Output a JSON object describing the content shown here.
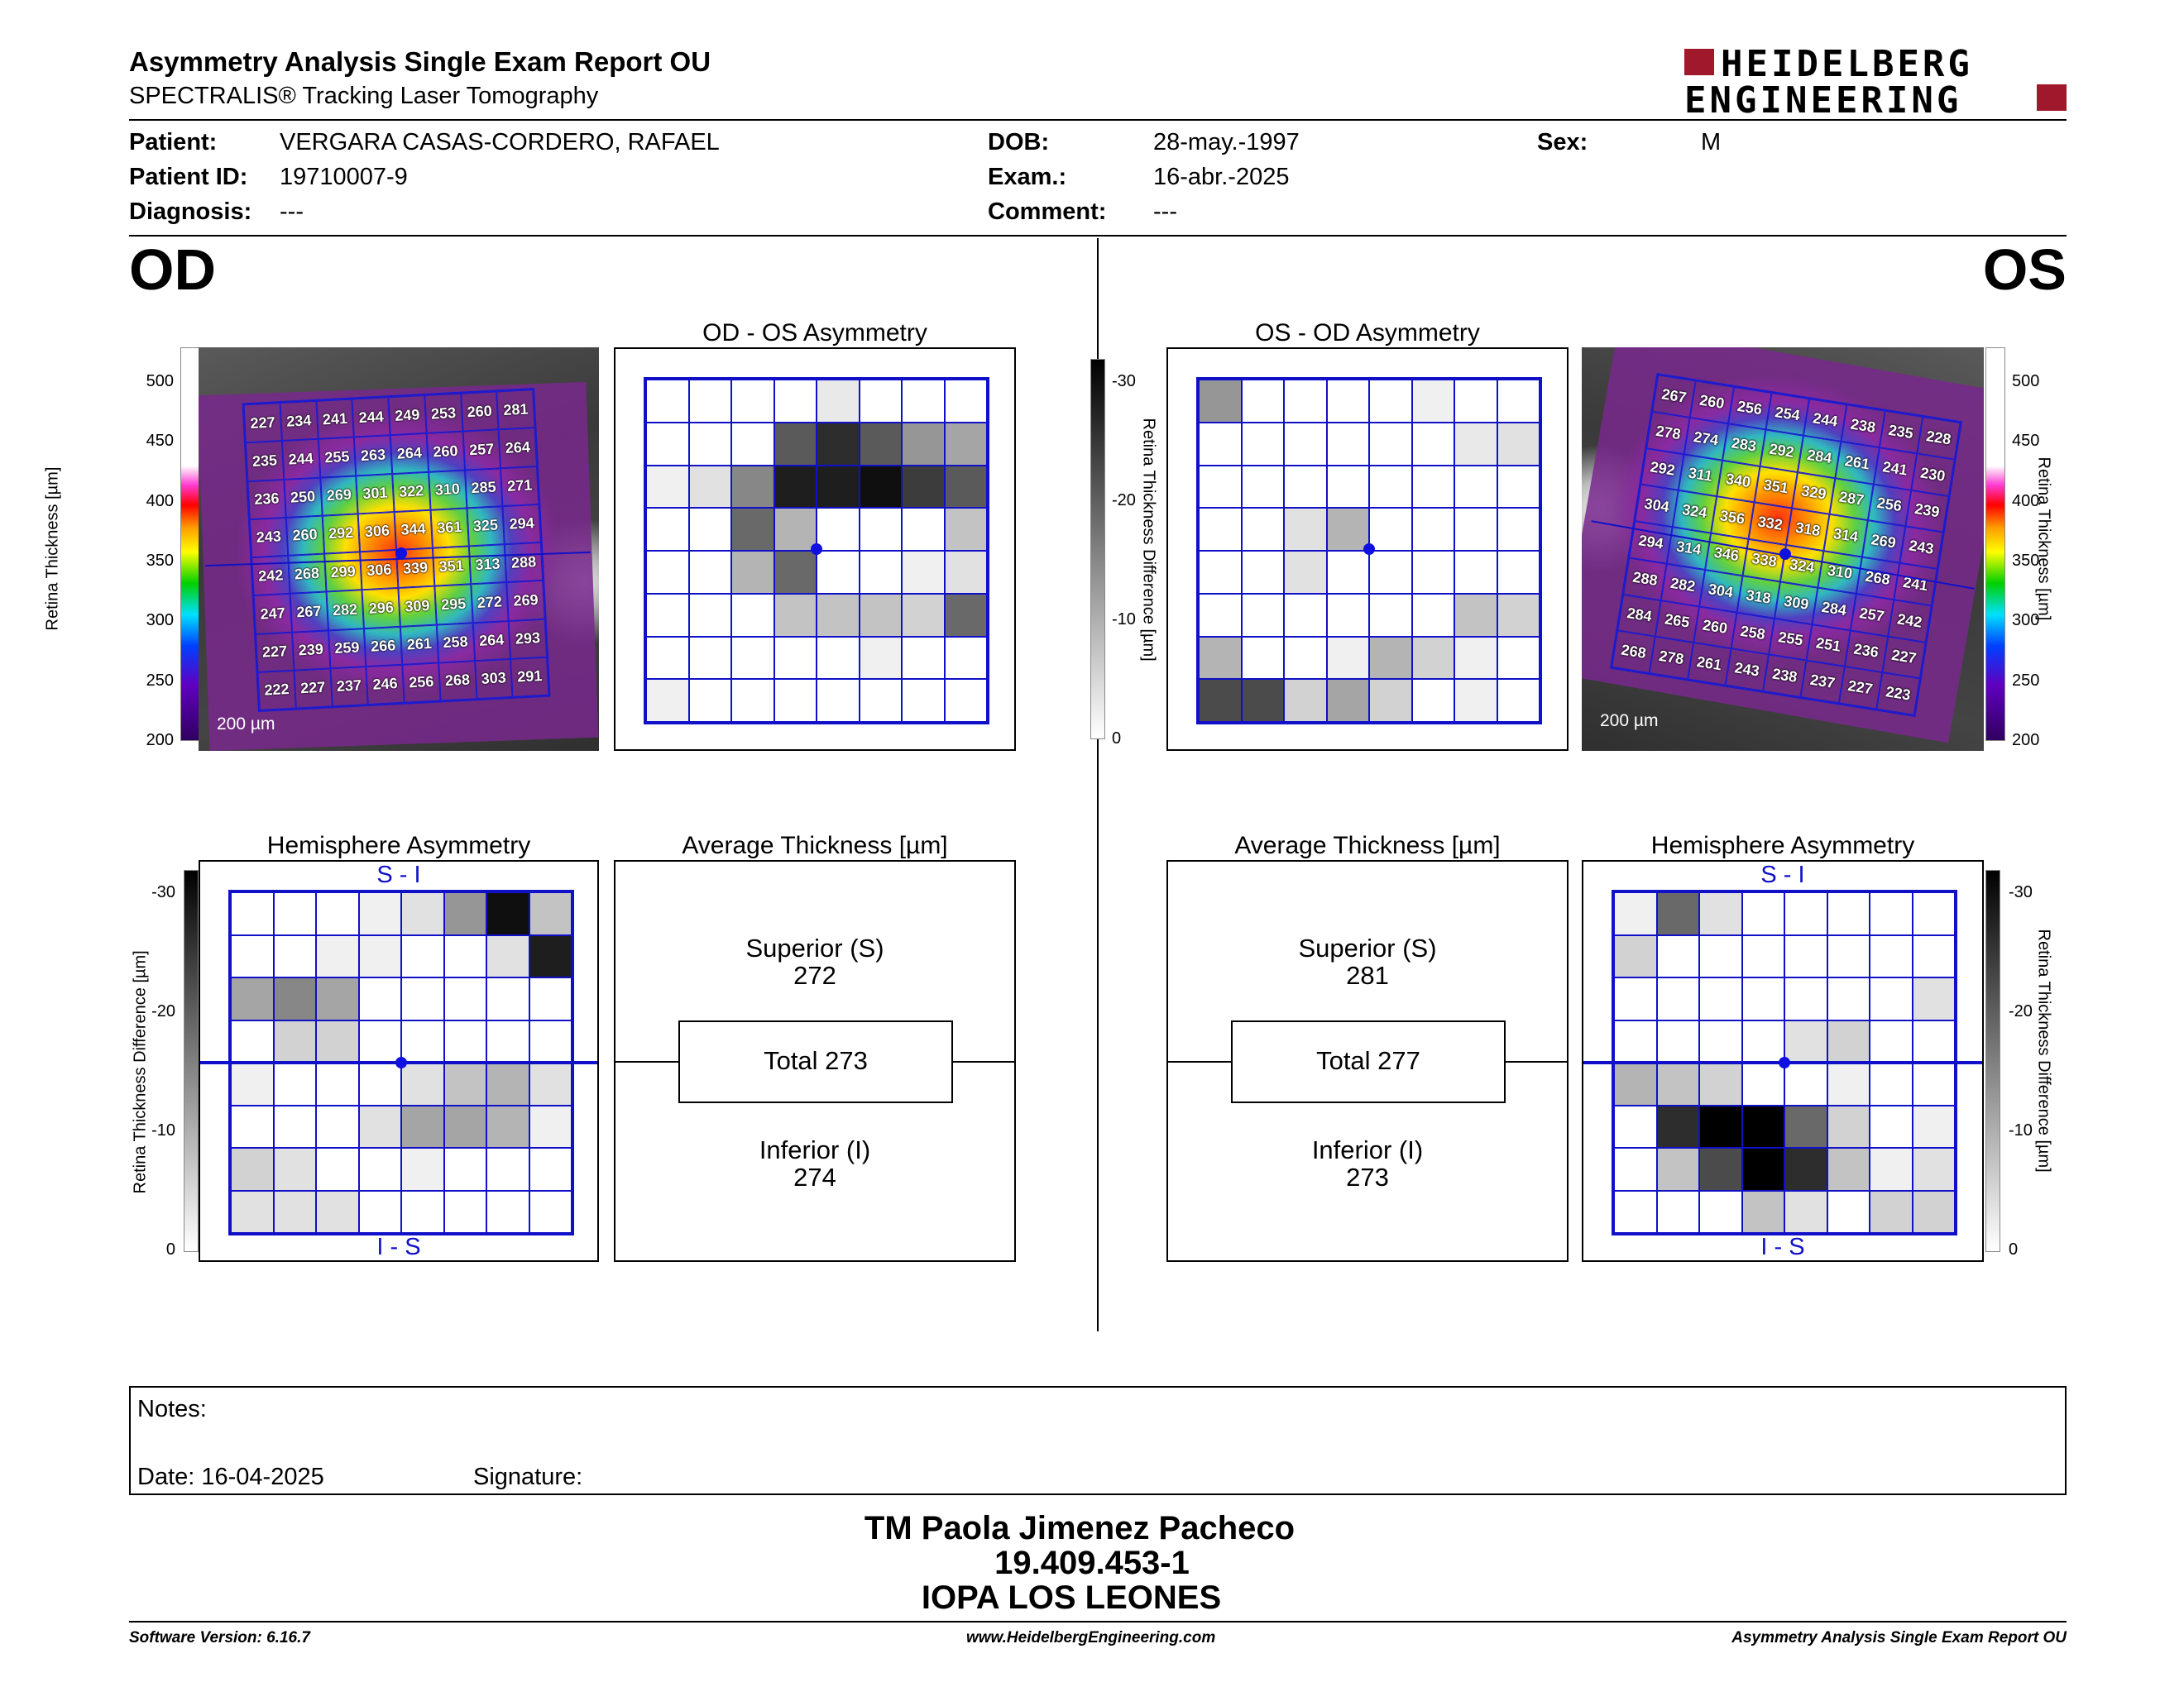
{
  "header": {
    "title": "Asymmetry Analysis Single Exam Report OU",
    "subtitle": "SPECTRALIS® Tracking Laser Tomography",
    "logo_line1": "HEIDELBERG",
    "logo_line2": "ENGINEERING"
  },
  "patient": {
    "patient_label": "Patient:",
    "patient_value": "VERGARA CASAS-CORDERO, RAFAEL",
    "dob_label": "DOB:",
    "dob_value": "28-may.-1997",
    "sex_label": "Sex:",
    "sex_value": "M",
    "id_label": "Patient ID:",
    "id_value": "19710007-9",
    "exam_label": "Exam.:",
    "exam_value": "16-abr.-2025",
    "diag_label": "Diagnosis:",
    "diag_value": "---",
    "comment_label": "Comment:",
    "comment_value": "---"
  },
  "eyes": {
    "od": "OD",
    "os": "OS"
  },
  "colors": {
    "grid_blue": "#1010c8",
    "brand_red": "#a0182c"
  },
  "scales": {
    "thickness_label": "Retina Thickness [µm]",
    "thickness_ticks": [
      "500",
      "450",
      "400",
      "350",
      "300",
      "250",
      "200"
    ],
    "diff_label": "Retina Thickness Difference [µm]",
    "diff_ticks": [
      "-30",
      "-20",
      "-10",
      "0"
    ],
    "scale_bar": "200 µm"
  },
  "od": {
    "thickness": [
      [
        "227",
        "234",
        "241",
        "244",
        "249",
        "253",
        "260",
        "281"
      ],
      [
        "235",
        "244",
        "255",
        "263",
        "264",
        "260",
        "257",
        "264"
      ],
      [
        "236",
        "250",
        "269",
        "301",
        "322",
        "310",
        "285",
        "271"
      ],
      [
        "243",
        "260",
        "292",
        "306",
        "344",
        "361",
        "325",
        "294"
      ],
      [
        "242",
        "268",
        "299",
        "306",
        "339",
        "351",
        "313",
        "288"
      ],
      [
        "247",
        "267",
        "282",
        "296",
        "309",
        "295",
        "272",
        "269"
      ],
      [
        "227",
        "239",
        "259",
        "266",
        "261",
        "258",
        "264",
        "293"
      ],
      [
        "222",
        "227",
        "237",
        "246",
        "256",
        "268",
        "303",
        "291"
      ]
    ],
    "asym_title": "OD - OS Asymmetry",
    "asym_values": [
      [
        0,
        0,
        0,
        0,
        -3,
        0,
        0,
        0
      ],
      [
        0,
        0,
        0,
        -22,
        -28,
        -22,
        -14,
        -12
      ],
      [
        -2,
        -4,
        -16,
        -30,
        -30,
        -32,
        -26,
        -22
      ],
      [
        0,
        0,
        -20,
        -10,
        0,
        0,
        0,
        -8
      ],
      [
        0,
        0,
        -10,
        -20,
        0,
        0,
        -2,
        -4
      ],
      [
        0,
        0,
        0,
        -8,
        -8,
        -8,
        -6,
        -20
      ],
      [
        0,
        0,
        0,
        0,
        0,
        -2,
        0,
        0
      ],
      [
        -2,
        0,
        0,
        0,
        0,
        0,
        0,
        0
      ]
    ],
    "hemi_title": "Hemisphere Asymmetry",
    "hemi_top": "S - I",
    "hemi_bottom": "I - S",
    "hemi_values": [
      [
        0,
        0,
        0,
        -2,
        -4,
        -14,
        -32,
        -8
      ],
      [
        0,
        0,
        -2,
        -2,
        0,
        0,
        -4,
        -30
      ],
      [
        -12,
        -16,
        -12,
        0,
        0,
        0,
        0,
        0
      ],
      [
        0,
        -6,
        -6,
        0,
        0,
        0,
        0,
        0
      ],
      [
        -2,
        0,
        0,
        0,
        -4,
        -8,
        -10,
        -4
      ],
      [
        0,
        0,
        0,
        -4,
        -12,
        -12,
        -10,
        -2
      ],
      [
        -6,
        -4,
        0,
        0,
        -2,
        0,
        0,
        0
      ],
      [
        -4,
        -4,
        -4,
        0,
        0,
        0,
        0,
        0
      ]
    ],
    "avg_title": "Average Thickness [µm]",
    "superior_label": "Superior (S)",
    "superior_value": "272",
    "total": "Total 273",
    "inferior_label": "Inferior (I)",
    "inferior_value": "274"
  },
  "os": {
    "thickness": [
      [
        "267",
        "260",
        "256",
        "254",
        "244",
        "238",
        "235",
        "228"
      ],
      [
        "278",
        "274",
        "283",
        "292",
        "284",
        "261",
        "241",
        "230"
      ],
      [
        "292",
        "311",
        "340",
        "351",
        "329",
        "287",
        "256",
        "239"
      ],
      [
        "304",
        "324",
        "356",
        "332",
        "318",
        "314",
        "269",
        "243"
      ],
      [
        "294",
        "314",
        "346",
        "338",
        "324",
        "310",
        "268",
        "241"
      ],
      [
        "288",
        "282",
        "304",
        "318",
        "309",
        "284",
        "257",
        "242"
      ],
      [
        "284",
        "265",
        "260",
        "258",
        "255",
        "251",
        "236",
        "227"
      ],
      [
        "268",
        "278",
        "261",
        "243",
        "238",
        "237",
        "227",
        "223"
      ]
    ],
    "asym_title": "OS - OD Asymmetry",
    "asym_values": [
      [
        -14,
        0,
        0,
        0,
        0,
        -2,
        0,
        0
      ],
      [
        0,
        0,
        0,
        0,
        0,
        0,
        -3,
        -4
      ],
      [
        0,
        0,
        0,
        0,
        0,
        0,
        0,
        0
      ],
      [
        0,
        0,
        -4,
        -10,
        0,
        0,
        0,
        0
      ],
      [
        0,
        0,
        -4,
        0,
        0,
        0,
        0,
        0
      ],
      [
        0,
        0,
        0,
        0,
        0,
        0,
        -8,
        -6
      ],
      [
        -10,
        0,
        0,
        -2,
        -10,
        -6,
        -2,
        0
      ],
      [
        -24,
        -24,
        -6,
        -12,
        -6,
        0,
        -2,
        0
      ]
    ],
    "hemi_title": "Hemisphere Asymmetry",
    "hemi_top": "S - I",
    "hemi_bottom": "I - S",
    "hemi_values": [
      [
        -2,
        -20,
        -4,
        0,
        0,
        0,
        0,
        0
      ],
      [
        -6,
        0,
        0,
        0,
        0,
        0,
        0,
        0
      ],
      [
        0,
        0,
        0,
        0,
        0,
        0,
        0,
        -4
      ],
      [
        0,
        0,
        0,
        0,
        -4,
        -6,
        0,
        0
      ],
      [
        -10,
        -8,
        -6,
        0,
        0,
        -2,
        0,
        0
      ],
      [
        0,
        -28,
        -34,
        -34,
        -20,
        -6,
        0,
        -2
      ],
      [
        0,
        -8,
        -24,
        -34,
        -28,
        -8,
        -2,
        -4
      ],
      [
        0,
        0,
        0,
        -8,
        -4,
        0,
        -6,
        -6
      ]
    ],
    "avg_title": "Average Thickness [µm]",
    "superior_label": "Superior (S)",
    "superior_value": "281",
    "total": "Total 277",
    "inferior_label": "Inferior (I)",
    "inferior_value": "273"
  },
  "notes": {
    "notes_label": "Notes:",
    "date_label": "Date: 16-04-2025",
    "signature_label": "Signature:"
  },
  "signature_block": {
    "name": "TM Paola Jimenez Pacheco",
    "id": "19.409.453-1",
    "org": "IOPA LOS LEONES"
  },
  "footer": {
    "software": "Software Version: 6.16.7",
    "website": "www.HeidelbergEngineering.com",
    "report": "Asymmetry Analysis Single Exam Report OU"
  }
}
